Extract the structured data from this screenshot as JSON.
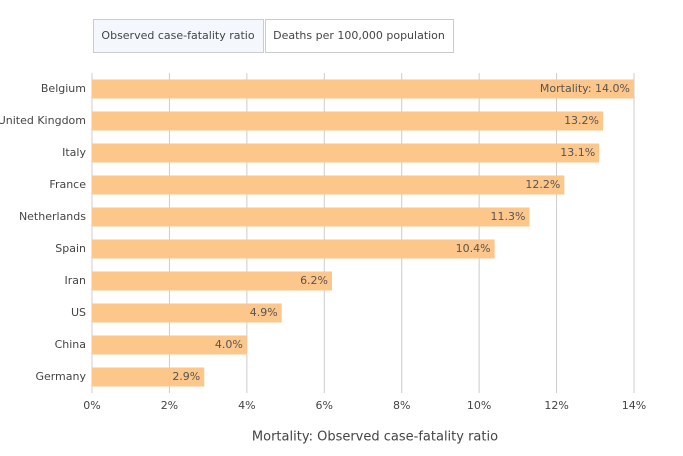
{
  "tabs": [
    "Observed case-fatality ratio",
    "Deaths per 100,000 population"
  ],
  "chart_data": {
    "type": "hbar",
    "x_label": "Mortality: Observed case-fatality ratio",
    "categories": [
      "Belgium",
      "United Kingdom",
      "Italy",
      "France",
      "Netherlands",
      "Spain",
      "Iran",
      "US",
      "China",
      "Germany"
    ],
    "values": [
      14.0,
      13.2,
      13.1,
      12.2,
      11.3,
      10.4,
      6.2,
      4.9,
      4.0,
      2.9
    ],
    "value_labels": [
      "Mortality: 14.0%",
      "13.2%",
      "13.1%",
      "12.2%",
      "11.3%",
      "10.4%",
      "6.2%",
      "4.9%",
      "4.0%",
      "2.9%"
    ],
    "color": "#fdc68a",
    "xlim": [
      0,
      14
    ],
    "xticks": [
      {
        "value": 0,
        "label": "0%"
      },
      {
        "value": 2,
        "label": "2%"
      },
      {
        "value": 4,
        "label": "4%"
      },
      {
        "value": 6,
        "label": "6%"
      },
      {
        "value": 8,
        "label": "8%"
      },
      {
        "value": 10,
        "label": "10%"
      },
      {
        "value": 12,
        "label": "12%"
      },
      {
        "value": 14,
        "label": "14%"
      }
    ],
    "grid": true
  }
}
